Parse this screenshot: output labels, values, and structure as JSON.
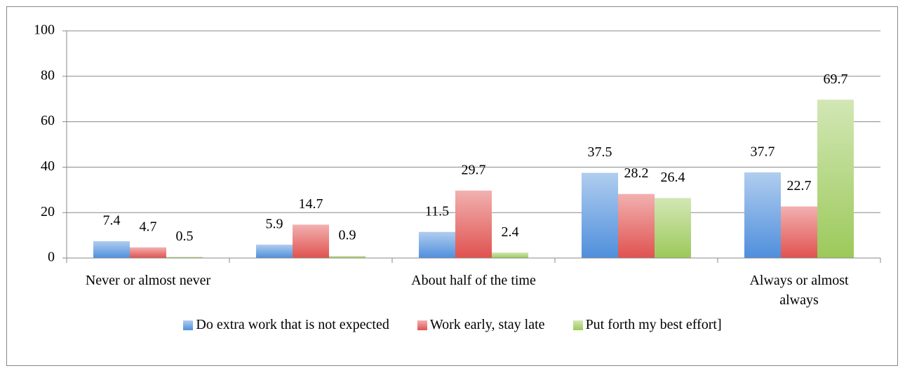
{
  "chart_data": {
    "type": "bar",
    "categories": [
      "Never or almost never",
      null,
      "About half of the time",
      null,
      "Always or almost always"
    ],
    "series": [
      {
        "name": "Do extra work that is not expected",
        "color": "#4f8fdc",
        "values": [
          7.4,
          5.9,
          11.5,
          37.5,
          37.7
        ]
      },
      {
        "name": "Work early, stay late",
        "color": "#e0524f",
        "values": [
          4.7,
          14.7,
          29.7,
          28.2,
          22.7
        ]
      },
      {
        "name": "Put forth my best effort]",
        "color": "#9cc95a",
        "values": [
          0.5,
          0.9,
          2.4,
          26.4,
          69.7
        ]
      }
    ],
    "ylim": [
      0,
      100
    ],
    "yticks": [
      0,
      20,
      40,
      60,
      80,
      100
    ],
    "grid": true,
    "legend": "bottom"
  }
}
